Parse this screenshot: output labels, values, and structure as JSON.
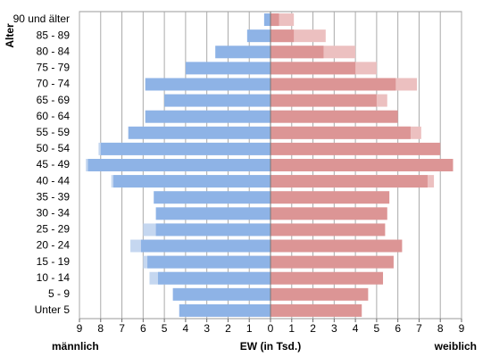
{
  "chart_data": {
    "type": "pyramid",
    "categories": [
      "90 und älter",
      "85 - 89",
      "80 - 84",
      "75 - 79",
      "70 - 74",
      "65 - 69",
      "60 - 64",
      "55 - 59",
      "50 - 54",
      "45 - 49",
      "40 - 44",
      "35 - 39",
      "30 - 34",
      "25 - 29",
      "20 - 24",
      "15 - 19",
      "10 - 14",
      "5 - 9",
      "Unter 5"
    ],
    "series": [
      {
        "color": "#c5d7f0",
        "values": [
          null,
          null,
          null,
          null,
          null,
          null,
          null,
          null,
          -8.1,
          -8.7,
          -7.5,
          null,
          null,
          -6.0,
          -6.6,
          -6.0,
          -5.7,
          null,
          null
        ]
      },
      {
        "name": "männlich",
        "color": "#8eb3e6",
        "values": [
          -0.3,
          -1.1,
          -2.6,
          -4.0,
          -5.9,
          -5.0,
          -5.9,
          -6.7,
          -8.0,
          -8.6,
          -7.4,
          -5.5,
          -5.4,
          -5.4,
          -6.1,
          -5.8,
          -5.3,
          -4.6,
          -4.3
        ]
      },
      {
        "color": "#ecc0c0",
        "values": [
          1.1,
          2.6,
          4.0,
          5.0,
          6.9,
          5.5,
          null,
          7.1,
          null,
          null,
          7.7,
          null,
          null,
          null,
          null,
          null,
          null,
          null,
          null
        ]
      },
      {
        "name": "weiblich",
        "color": "#dc9595",
        "values": [
          0.4,
          1.1,
          2.5,
          4.0,
          5.9,
          5.0,
          6.0,
          6.6,
          8.0,
          8.6,
          7.4,
          5.6,
          5.5,
          5.4,
          6.2,
          5.8,
          5.3,
          4.6,
          4.3
        ]
      }
    ],
    "xlabel": "EW (in Tsd.)",
    "ylabel": "Alter",
    "xlim": [
      -9,
      9
    ],
    "xticks": [
      {
        "value": -9,
        "label": "9"
      },
      {
        "value": -8,
        "label": "8"
      },
      {
        "value": -7,
        "label": "7"
      },
      {
        "value": -6,
        "label": "6"
      },
      {
        "value": -5,
        "label": "5"
      },
      {
        "value": -4,
        "label": "4"
      },
      {
        "value": -3,
        "label": "3"
      },
      {
        "value": -2,
        "label": "2"
      },
      {
        "value": -1,
        "label": "1"
      },
      0,
      1,
      2,
      3,
      4,
      5,
      6,
      7,
      8,
      9
    ],
    "grid": true
  }
}
